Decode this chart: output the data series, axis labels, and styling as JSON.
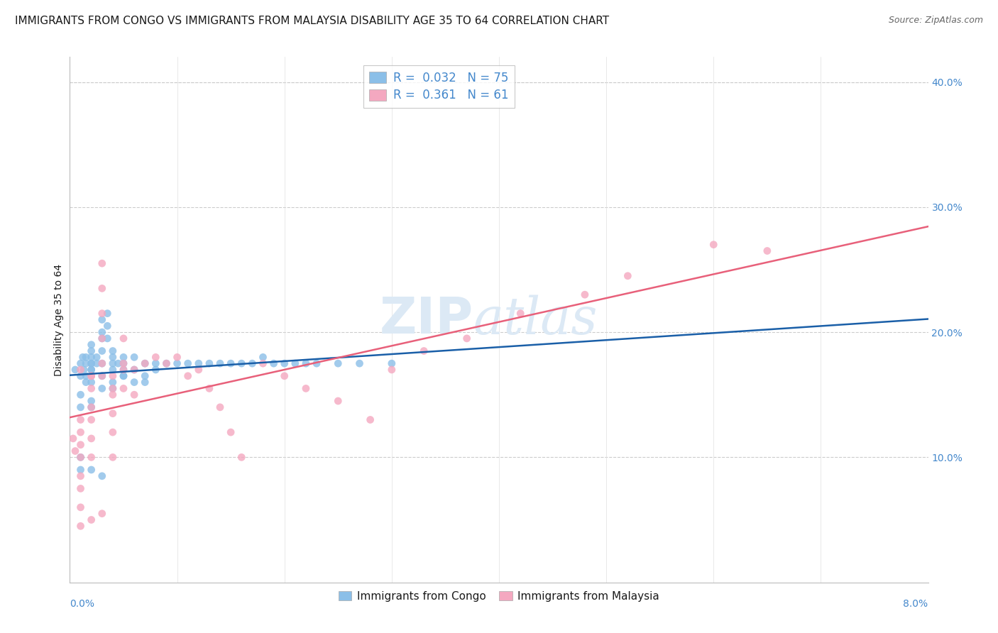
{
  "title": "IMMIGRANTS FROM CONGO VS IMMIGRANTS FROM MALAYSIA DISABILITY AGE 35 TO 64 CORRELATION CHART",
  "source": "Source: ZipAtlas.com",
  "xlabel_bottom_left": "0.0%",
  "xlabel_bottom_right": "8.0%",
  "ylabel": "Disability Age 35 to 64",
  "xmin": 0.0,
  "xmax": 0.08,
  "ymin": 0.0,
  "ymax": 0.42,
  "yticks_right": [
    0.1,
    0.2,
    0.3,
    0.4
  ],
  "ytick_labels_right": [
    "10.0%",
    "20.0%",
    "30.0%",
    "40.0%"
  ],
  "series": [
    {
      "name": "Immigrants from Congo",
      "R": 0.032,
      "N": 75,
      "color": "#8bbfe8",
      "line_color": "#1a5fa8",
      "x": [
        0.0005,
        0.001,
        0.001,
        0.0012,
        0.0013,
        0.0015,
        0.0015,
        0.0015,
        0.0015,
        0.002,
        0.002,
        0.002,
        0.002,
        0.002,
        0.002,
        0.002,
        0.002,
        0.0025,
        0.0025,
        0.003,
        0.003,
        0.003,
        0.003,
        0.003,
        0.0035,
        0.0035,
        0.0035,
        0.004,
        0.004,
        0.004,
        0.004,
        0.0045,
        0.005,
        0.005,
        0.005,
        0.005,
        0.006,
        0.006,
        0.007,
        0.007,
        0.008,
        0.008,
        0.009,
        0.01,
        0.011,
        0.012,
        0.013,
        0.014,
        0.015,
        0.016,
        0.017,
        0.018,
        0.019,
        0.02,
        0.021,
        0.022,
        0.023,
        0.025,
        0.027,
        0.03,
        0.003,
        0.004,
        0.001,
        0.001,
        0.002,
        0.002,
        0.003,
        0.004,
        0.005,
        0.006,
        0.007,
        0.001,
        0.001,
        0.002,
        0.003
      ],
      "y": [
        0.17,
        0.165,
        0.175,
        0.18,
        0.17,
        0.175,
        0.18,
        0.165,
        0.16,
        0.175,
        0.185,
        0.19,
        0.17,
        0.16,
        0.175,
        0.18,
        0.17,
        0.18,
        0.175,
        0.195,
        0.2,
        0.21,
        0.185,
        0.175,
        0.215,
        0.205,
        0.195,
        0.18,
        0.185,
        0.175,
        0.17,
        0.175,
        0.18,
        0.175,
        0.17,
        0.165,
        0.18,
        0.17,
        0.175,
        0.165,
        0.175,
        0.17,
        0.175,
        0.175,
        0.175,
        0.175,
        0.175,
        0.175,
        0.175,
        0.175,
        0.175,
        0.18,
        0.175,
        0.175,
        0.175,
        0.175,
        0.175,
        0.175,
        0.175,
        0.175,
        0.155,
        0.16,
        0.15,
        0.14,
        0.145,
        0.14,
        0.165,
        0.155,
        0.165,
        0.16,
        0.16,
        0.09,
        0.1,
        0.09,
        0.085
      ]
    },
    {
      "name": "Immigrants from Malaysia",
      "R": 0.361,
      "N": 61,
      "color": "#f4a8c0",
      "line_color": "#e8607a",
      "x": [
        0.0003,
        0.0005,
        0.001,
        0.001,
        0.001,
        0.001,
        0.001,
        0.001,
        0.001,
        0.002,
        0.002,
        0.002,
        0.002,
        0.002,
        0.002,
        0.003,
        0.003,
        0.003,
        0.003,
        0.003,
        0.004,
        0.004,
        0.004,
        0.004,
        0.004,
        0.005,
        0.005,
        0.005,
        0.006,
        0.006,
        0.007,
        0.008,
        0.009,
        0.01,
        0.011,
        0.012,
        0.013,
        0.014,
        0.015,
        0.016,
        0.018,
        0.02,
        0.022,
        0.025,
        0.028,
        0.03,
        0.033,
        0.037,
        0.042,
        0.048,
        0.052,
        0.06,
        0.065,
        0.001,
        0.002,
        0.003,
        0.004,
        0.005,
        0.001,
        0.002,
        0.003
      ],
      "y": [
        0.115,
        0.105,
        0.13,
        0.12,
        0.11,
        0.1,
        0.085,
        0.075,
        0.06,
        0.165,
        0.155,
        0.14,
        0.13,
        0.115,
        0.1,
        0.255,
        0.235,
        0.215,
        0.195,
        0.175,
        0.165,
        0.15,
        0.135,
        0.12,
        0.1,
        0.195,
        0.175,
        0.155,
        0.17,
        0.15,
        0.175,
        0.18,
        0.175,
        0.18,
        0.165,
        0.17,
        0.155,
        0.14,
        0.12,
        0.1,
        0.175,
        0.165,
        0.155,
        0.145,
        0.13,
        0.17,
        0.185,
        0.195,
        0.215,
        0.23,
        0.245,
        0.27,
        0.265,
        0.17,
        0.165,
        0.165,
        0.155,
        0.17,
        0.045,
        0.05,
        0.055
      ]
    }
  ],
  "legend_R_congo": "0.032",
  "legend_N_congo": "75",
  "legend_R_malaysia": "0.361",
  "legend_N_malaysia": "61",
  "watermark_zip": "ZIP",
  "watermark_atlas": "atlas",
  "title_color": "#1a1a1a",
  "source_color": "#666666",
  "axis_label_color": "#4488cc",
  "legend_R_color": "#4488cc",
  "grid_color": "#cccccc",
  "background_color": "#ffffff",
  "title_fontsize": 11,
  "source_fontsize": 9,
  "ylabel_fontsize": 10,
  "tick_fontsize": 10,
  "legend_fontsize": 12,
  "watermark_fontsize_zip": 52,
  "watermark_fontsize_atlas": 52,
  "watermark_color": "#dce9f5",
  "scatter_size": 60,
  "scatter_alpha": 0.8,
  "line_width": 1.8
}
